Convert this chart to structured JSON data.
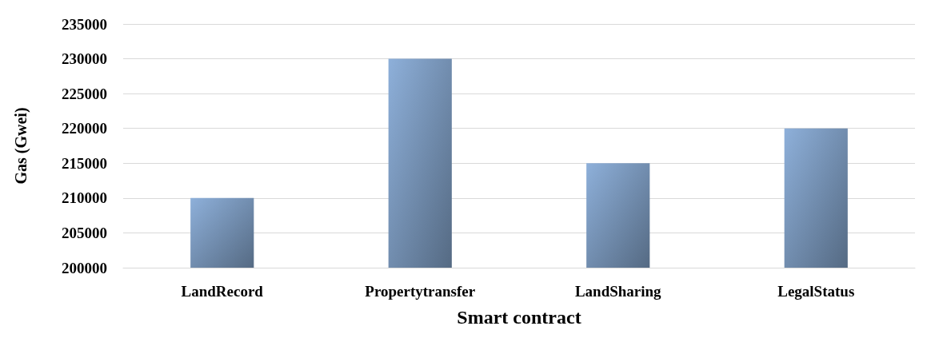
{
  "chart_data": {
    "type": "bar",
    "xlabel": "Smart contract",
    "ylabel": "Gas (Gwei)",
    "categories": [
      "LandRecord",
      "Propertytransfer",
      "LandSharing",
      "LegalStatus"
    ],
    "values": [
      210000,
      230000,
      215000,
      220000
    ],
    "color": "#8eb0da",
    "ylim": [
      200000,
      235000
    ],
    "yticks": [
      200000,
      205000,
      210000,
      215000,
      220000,
      225000,
      230000,
      235000
    ],
    "grid": "y"
  }
}
